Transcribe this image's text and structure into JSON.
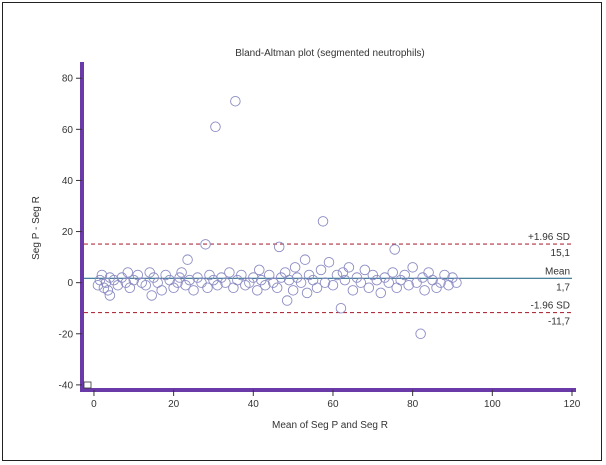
{
  "chart_data": {
    "type": "scatter",
    "title": "Bland-Altman plot (segmented neutrophils)",
    "xlabel": "Mean of Seg P and Seg R",
    "ylabel": "Seg P - Seg R",
    "xlim": [
      -3,
      120
    ],
    "ylim": [
      -42,
      84
    ],
    "xticks": [
      0,
      20,
      40,
      60,
      80,
      100,
      120
    ],
    "yticks": [
      -40,
      -20,
      0,
      20,
      40,
      60,
      80
    ],
    "grid": false,
    "colors": {
      "points": "#8c8cc4",
      "mean_line": "#2f6f8f",
      "sd_lines": "#b03040",
      "axis": "#6a3aa8"
    },
    "reference_lines": [
      {
        "label": "+1.96 SD",
        "value_text": "15,1",
        "y": 15.1,
        "style": "dashed",
        "color": "#b03040"
      },
      {
        "label": "Mean",
        "value_text": "1,7",
        "y": 1.7,
        "style": "solid",
        "color": "#2f6f8f"
      },
      {
        "label": "-1.96 SD",
        "value_text": "-11,7",
        "y": -11.7,
        "style": "dashed",
        "color": "#b03040"
      }
    ],
    "points": [
      [
        1,
        -1
      ],
      [
        1.5,
        1
      ],
      [
        2,
        3
      ],
      [
        2.5,
        -2
      ],
      [
        3,
        0
      ],
      [
        3.5,
        -3
      ],
      [
        4,
        2
      ],
      [
        4,
        -5
      ],
      [
        5,
        1
      ],
      [
        6,
        -1
      ],
      [
        7,
        2
      ],
      [
        8,
        0
      ],
      [
        8.5,
        4
      ],
      [
        9,
        -2
      ],
      [
        10,
        1
      ],
      [
        11,
        3
      ],
      [
        12,
        0
      ],
      [
        13,
        -1
      ],
      [
        14,
        4
      ],
      [
        14.5,
        -5
      ],
      [
        15,
        2
      ],
      [
        16,
        0
      ],
      [
        17,
        -3
      ],
      [
        18,
        3
      ],
      [
        19,
        1
      ],
      [
        20,
        -2
      ],
      [
        21,
        0
      ],
      [
        21.5,
        2
      ],
      [
        22,
        4
      ],
      [
        23,
        -1
      ],
      [
        23.5,
        9
      ],
      [
        24,
        1
      ],
      [
        25,
        -3
      ],
      [
        26,
        2
      ],
      [
        27,
        0
      ],
      [
        28,
        15
      ],
      [
        28.5,
        -2
      ],
      [
        29,
        3
      ],
      [
        30,
        1
      ],
      [
        30.5,
        61
      ],
      [
        31,
        -1
      ],
      [
        32,
        2
      ],
      [
        33,
        0
      ],
      [
        34,
        4
      ],
      [
        35,
        -2
      ],
      [
        35.5,
        71
      ],
      [
        36,
        1
      ],
      [
        37,
        3
      ],
      [
        38,
        -1
      ],
      [
        39,
        0
      ],
      [
        40,
        2
      ],
      [
        41,
        -3
      ],
      [
        41.5,
        5
      ],
      [
        42,
        1
      ],
      [
        43,
        -1
      ],
      [
        44,
        3
      ],
      [
        45,
        0
      ],
      [
        46,
        -2
      ],
      [
        46.5,
        14
      ],
      [
        47,
        2
      ],
      [
        48,
        4
      ],
      [
        48.5,
        -7
      ],
      [
        49,
        1
      ],
      [
        50,
        -3
      ],
      [
        50.5,
        6
      ],
      [
        51,
        2
      ],
      [
        52,
        0
      ],
      [
        53,
        9
      ],
      [
        53.5,
        -4
      ],
      [
        54,
        3
      ],
      [
        55,
        1
      ],
      [
        56,
        -2
      ],
      [
        57,
        5
      ],
      [
        57.5,
        24
      ],
      [
        58,
        0
      ],
      [
        59,
        8
      ],
      [
        60,
        -1
      ],
      [
        61,
        3
      ],
      [
        62,
        -10
      ],
      [
        62.5,
        4
      ],
      [
        63,
        1
      ],
      [
        64,
        6
      ],
      [
        65,
        -3
      ],
      [
        66,
        2
      ],
      [
        67,
        0
      ],
      [
        68,
        5
      ],
      [
        69,
        -2
      ],
      [
        70,
        3
      ],
      [
        71,
        1
      ],
      [
        72,
        -4
      ],
      [
        73,
        2
      ],
      [
        74,
        0
      ],
      [
        75,
        4
      ],
      [
        75.5,
        13
      ],
      [
        76,
        -2
      ],
      [
        77,
        1
      ],
      [
        78,
        3
      ],
      [
        79,
        -1
      ],
      [
        80,
        6
      ],
      [
        81,
        0
      ],
      [
        82,
        -20
      ],
      [
        82.5,
        2
      ],
      [
        83,
        -3
      ],
      [
        84,
        4
      ],
      [
        85,
        1
      ],
      [
        86,
        -2
      ],
      [
        87,
        0
      ],
      [
        88,
        3
      ],
      [
        89,
        -1
      ],
      [
        90,
        2
      ],
      [
        91,
        0
      ]
    ]
  }
}
